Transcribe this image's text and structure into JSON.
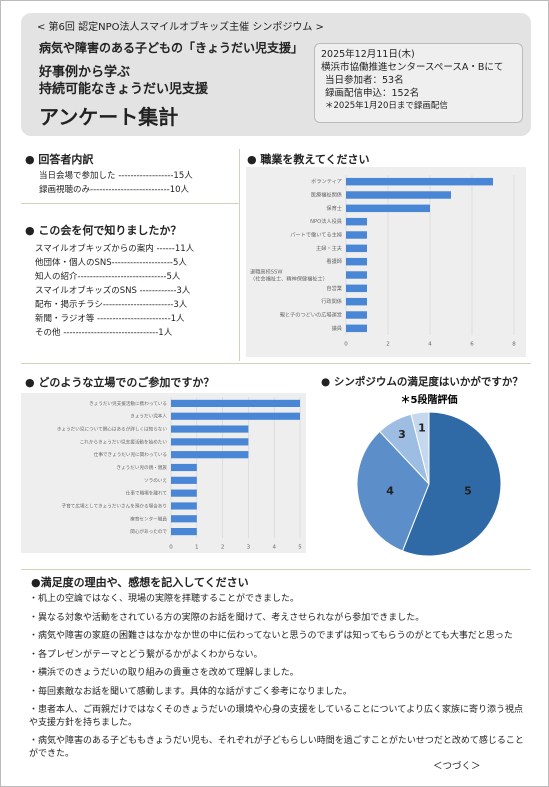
{
  "header": {
    "symposium": "< 第6回 認定NPO法人スマイルオブキッズ主催 シンポジウム >",
    "theme": "病気や障害のある子どもの「きょうだい児支援」",
    "title_1": "好事例から学ぶ",
    "title_2": "持続可能なきょうだい児支援",
    "main_title": "アンケート集計"
  },
  "info": [
    "2025年12月11日(木)",
    "横浜市協働推進センタースペースA・Bにて",
    "当日参加者：53名",
    "録画配信申込：152名",
    "＊2025年1月20日まで録画配信"
  ],
  "respondents": {
    "title": "● 回答者内訳",
    "lines": [
      "当日会場で参加した ------------------15人",
      "録画視聴のみ--------------------------10人"
    ]
  },
  "source": {
    "title": "● この会を何で知りましたか？",
    "lines": [
      "スマイルオブキッズからの案内 ------11人",
      "他団体・個人のSNS--------------------5人",
      "知人の紹介-----------------------------5人",
      "スマイルオブキッズのSNS ------------3人",
      "配布・掲示チラシ-----------------------3人",
      "新聞・ラジオ等 ------------------------1人",
      "その他 -------------------------------1人"
    ]
  },
  "chart_data": [
    {
      "type": "hbar",
      "title": "● 職業を教えてください",
      "categories": [
        "ボランティア",
        "医療福祉関係",
        "保育士",
        "NPO法人役員",
        "パートで働いてる主婦",
        "主婦・主夫",
        "看護師",
        "退職高校SSW（社会福祉士、精神保健福祉士）",
        "自営業",
        "行政関係",
        "親と子のつどいの広場運営",
        "議員"
      ],
      "values": [
        7,
        5,
        4,
        1,
        1,
        1,
        1,
        1,
        1,
        1,
        1,
        1
      ],
      "color": "#4a86d6",
      "xlim": [
        0,
        8
      ],
      "xticks": [
        0,
        2,
        4,
        6,
        8
      ],
      "grid": true
    },
    {
      "type": "hbar",
      "title": "● どのような立場でのご参加ですか？",
      "categories": [
        "きょうだい児支援活動に携わっている",
        "きょうだい児本人",
        "きょうだい児について関心はあるが詳しくは知らない",
        "これからきょうだい児支援活動を始めたい",
        "仕事できょうだい児に関わっている",
        "きょうだい児の親・親族",
        "ソラのいえ",
        "仕事で職場を離れて",
        "子育て広場としてきょうだいさんを預かる場合あり",
        "療育センター職員",
        "関心があったので"
      ],
      "values": [
        5,
        5,
        3,
        3,
        3,
        1,
        1,
        1,
        1,
        1,
        1
      ],
      "color": "#4a86d6",
      "xlim": [
        0,
        5
      ],
      "xticks": [
        0,
        1,
        2,
        3,
        4,
        5
      ],
      "grid": true
    },
    {
      "type": "pie",
      "title": "● シンポジウムの満足度はいかがですか？",
      "subtitle": "＊5段階評価",
      "labels": [
        "5",
        "4",
        "3",
        "1"
      ],
      "values": [
        14,
        8,
        2,
        1
      ],
      "colors": [
        "#2f6aa6",
        "#5c8fca",
        "#9dbde3",
        "#c6d8ee"
      ]
    }
  ],
  "comments": {
    "title": "●満足度の理由や、感想を記入してください",
    "items": [
      "・机上の空論ではなく、現場の実際を拝聴することができました。",
      "・異なる対象や活動をされている方の実際のお話を聞けて、考えさせられながら参加できました。",
      "・病気や障害の家庭の困難さはなかなか世の中に伝わってないと思うのでまずは知ってもらうのがとても大事だと思った",
      "・各プレゼンがテーマとどう繋がるかがよくわからない。",
      "・横浜でのきょうだいの取り組みの貴重さを改めて理解しました。",
      "・毎回素敵なお話を聞いて感動します。具体的な話がすごく参考になりました。",
      "・患者本人、ご両親だけではなくそのきょうだいの環境や心身の支援をしていることについてより広く家族に寄り添う視点や支援方針を持ちました。",
      "・病気や障害のある子どももきょうだい児も、それぞれが子どもらしい時間を過ごすことがたいせつだと改めて感じることができた。"
    ],
    "continued": "＜つづく＞"
  }
}
